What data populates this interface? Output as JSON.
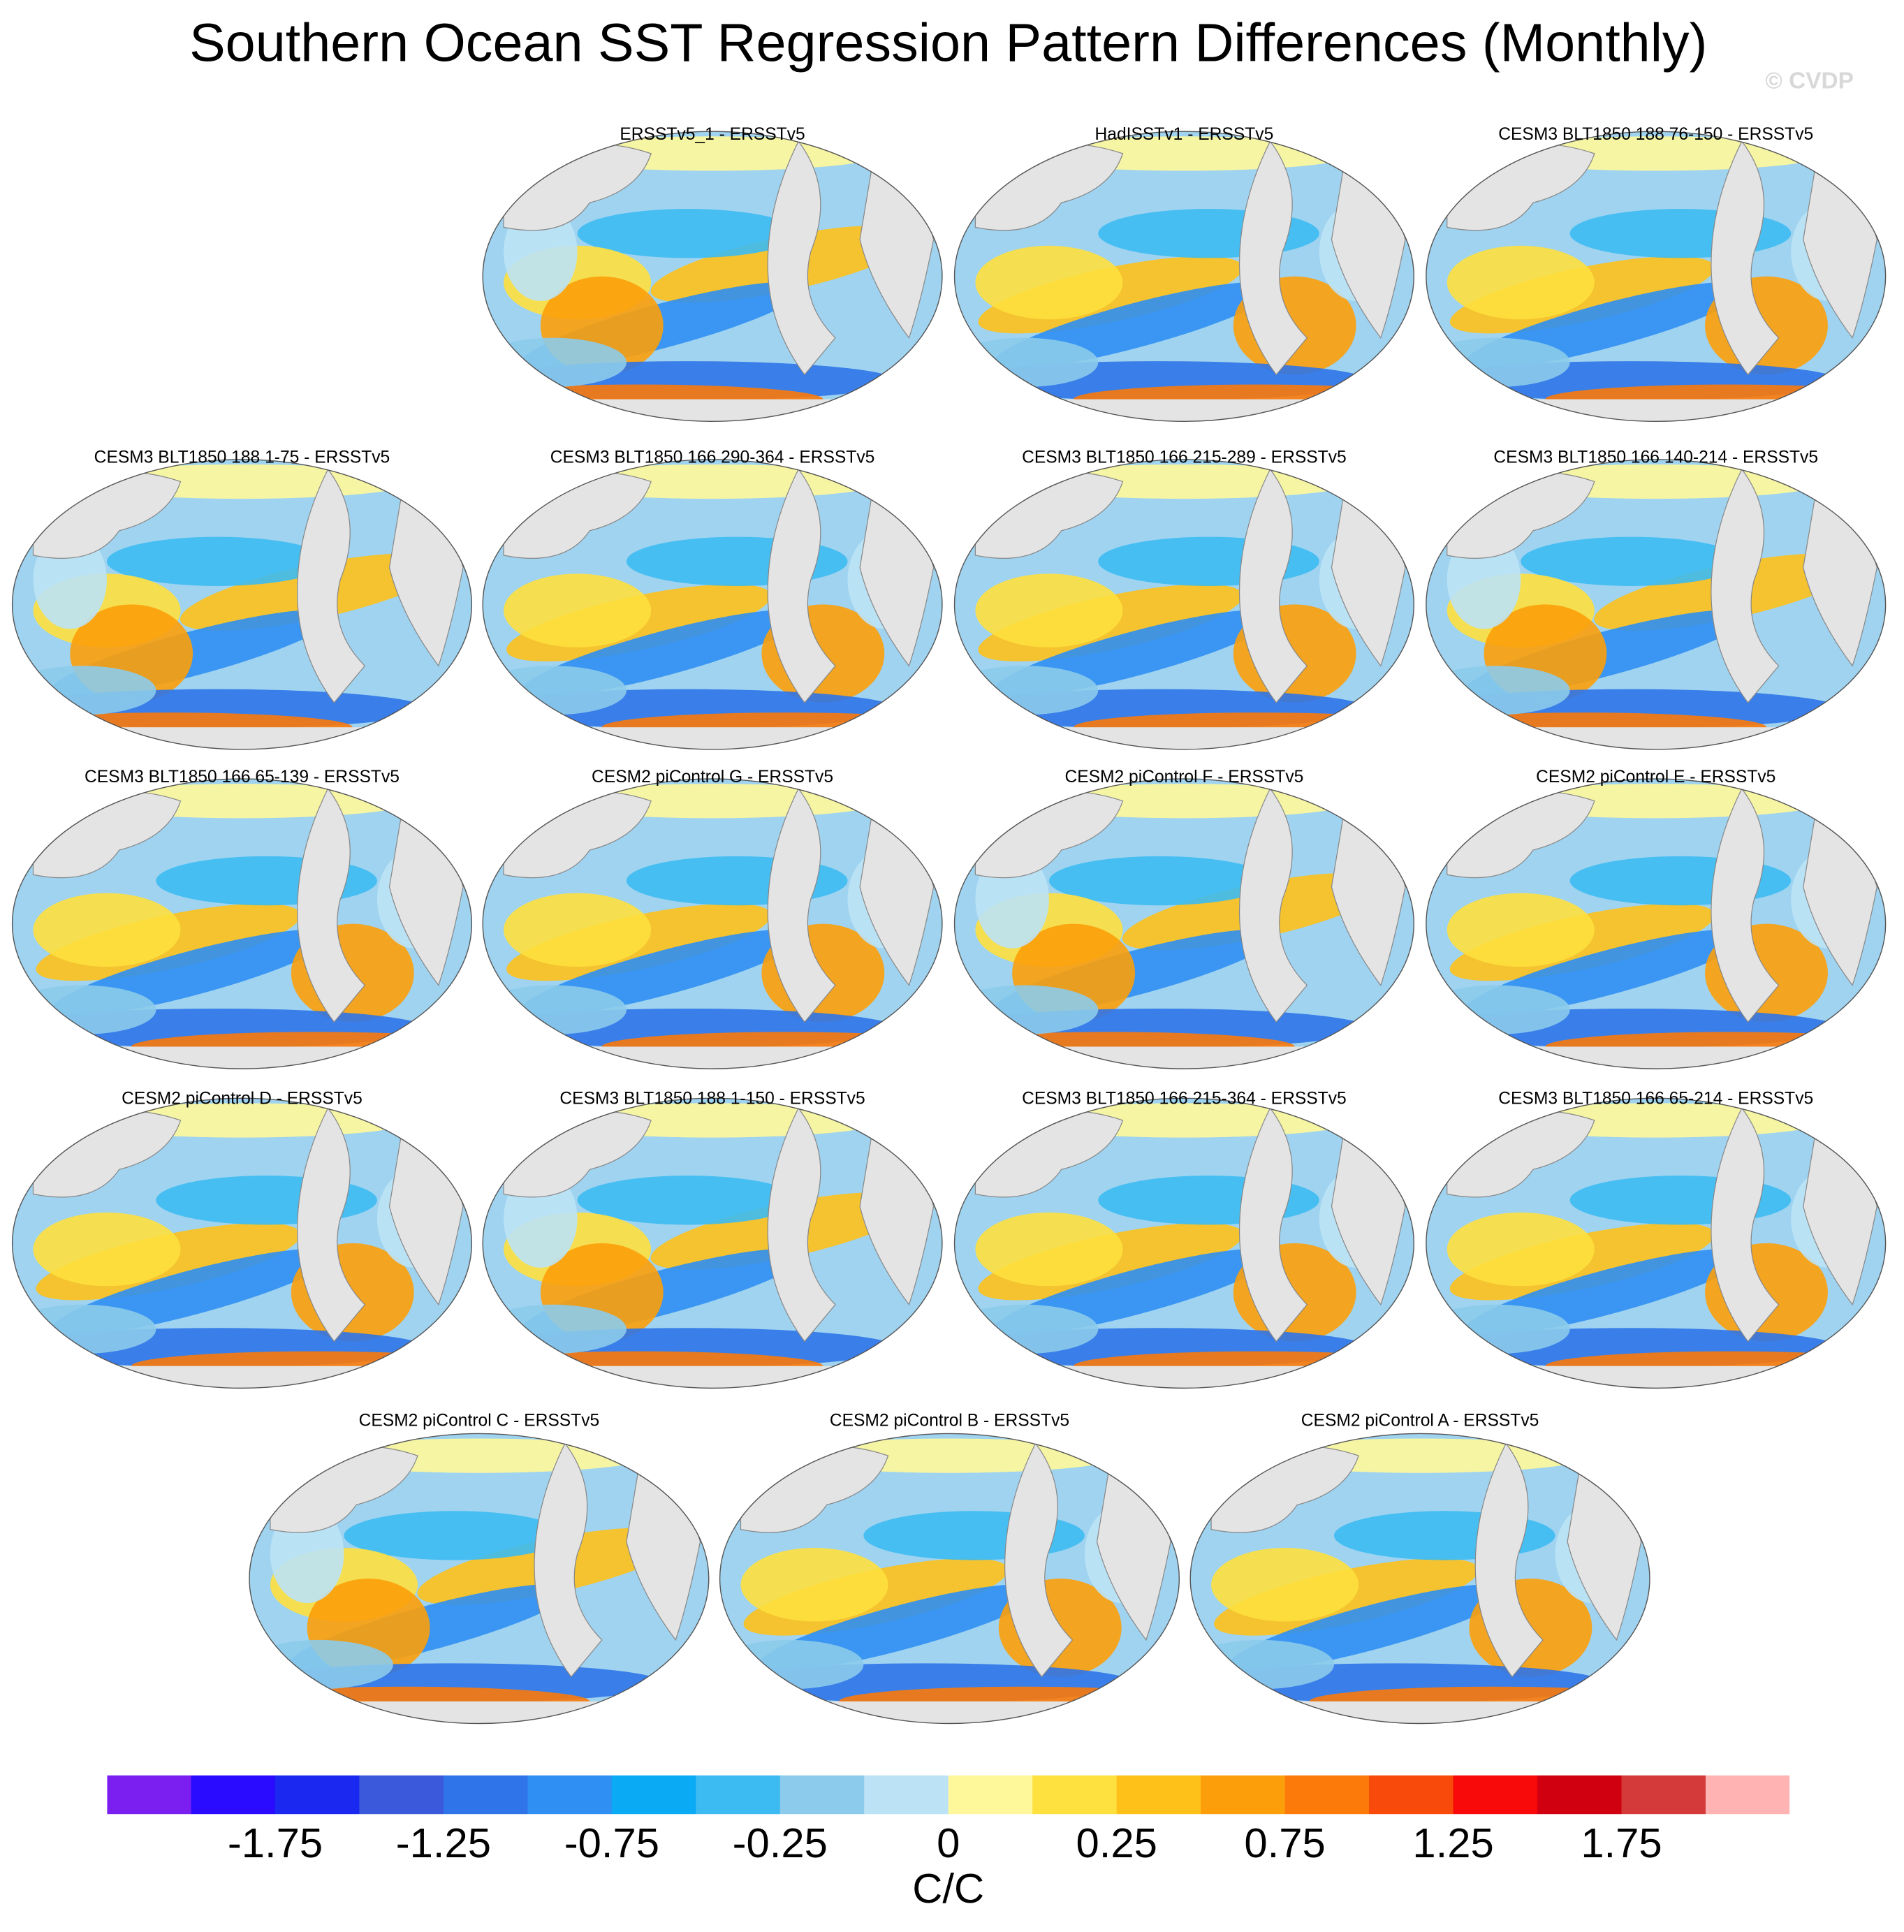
{
  "title": "Southern Ocean SST Regression Pattern Differences (Monthly)",
  "watermark": "© CVDP",
  "panels": [
    {
      "title": "ERSSTv5_1 - ERSSTv5"
    },
    {
      "title": "HadISSTv1 - ERSSTv5"
    },
    {
      "title": "CESM3 BLT1850 188 76-150 - ERSSTv5"
    },
    {
      "title": "CESM3 BLT1850 188 1-75 - ERSSTv5"
    },
    {
      "title": "CESM3 BLT1850 166 290-364 - ERSSTv5"
    },
    {
      "title": "CESM3 BLT1850 166 215-289 - ERSSTv5"
    },
    {
      "title": "CESM3 BLT1850 166 140-214 - ERSSTv5"
    },
    {
      "title": "CESM3 BLT1850 166 65-139 - ERSSTv5"
    },
    {
      "title": "CESM2 piControl G - ERSSTv5"
    },
    {
      "title": "CESM2 piControl F - ERSSTv5"
    },
    {
      "title": "CESM2 piControl E - ERSSTv5"
    },
    {
      "title": "CESM2 piControl D - ERSSTv5"
    },
    {
      "title": "CESM3 BLT1850 188 1-150 - ERSSTv5"
    },
    {
      "title": "CESM3 BLT1850 166 215-364 - ERSSTv5"
    },
    {
      "title": "CESM3 BLT1850 166 65-214 - ERSSTv5"
    },
    {
      "title": "CESM2 piControl C - ERSSTv5"
    },
    {
      "title": "CESM2 piControl B - ERSSTv5"
    },
    {
      "title": "CESM2 piControl A - ERSSTv5"
    }
  ],
  "colorbar": {
    "label": "C/C",
    "colors": [
      "#7b1ff0",
      "#2b0bff",
      "#1a28f0",
      "#3a5adb",
      "#2f74e8",
      "#2f8ff2",
      "#0baaf5",
      "#3cbbf2",
      "#8ccbeb",
      "#bce3f5",
      "#fff89a",
      "#fee03e",
      "#fdc11a",
      "#fc9e0a",
      "#fb7a0a",
      "#f84a0a",
      "#f80a0a",
      "#d00010",
      "#d43a3a",
      "#ffb3b3"
    ],
    "ticks": [
      -1.75,
      -1.25,
      -0.75,
      -0.25,
      0,
      0.25,
      0.75,
      1.25,
      1.75
    ]
  }
}
